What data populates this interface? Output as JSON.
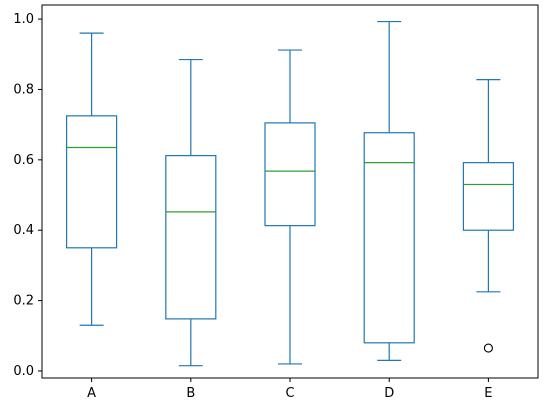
{
  "chart_data": {
    "type": "box",
    "categories": [
      "A",
      "B",
      "C",
      "D",
      "E"
    ],
    "boxes": [
      {
        "name": "A",
        "whisker_low": 0.13,
        "q1": 0.35,
        "median": 0.635,
        "q3": 0.725,
        "whisker_high": 0.96,
        "outliers": []
      },
      {
        "name": "B",
        "whisker_low": 0.015,
        "q1": 0.148,
        "median": 0.452,
        "q3": 0.612,
        "whisker_high": 0.885,
        "outliers": []
      },
      {
        "name": "C",
        "whisker_low": 0.02,
        "q1": 0.413,
        "median": 0.568,
        "q3": 0.705,
        "whisker_high": 0.912,
        "outliers": []
      },
      {
        "name": "D",
        "whisker_low": 0.03,
        "q1": 0.08,
        "median": 0.592,
        "q3": 0.677,
        "whisker_high": 0.993,
        "outliers": []
      },
      {
        "name": "E",
        "whisker_low": 0.225,
        "q1": 0.4,
        "median": 0.53,
        "q3": 0.592,
        "whisker_high": 0.828,
        "outliers": [
          0.065
        ]
      }
    ],
    "y_ticks": [
      "0.0",
      "0.2",
      "0.4",
      "0.6",
      "0.8",
      "1.0"
    ],
    "ylim": [
      -0.02,
      1.04
    ],
    "grid": false,
    "colors": {
      "box": "#1f77b4",
      "median": "#2ca02c",
      "axis": "#000000",
      "outlier": "#000000"
    }
  }
}
